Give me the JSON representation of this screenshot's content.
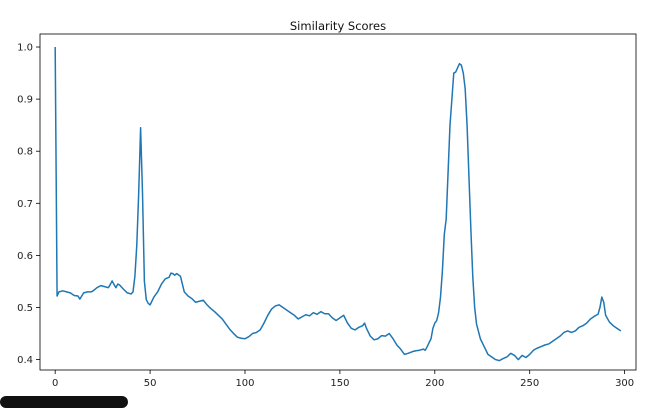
{
  "chart_data": {
    "type": "line",
    "title": "Similarity Scores",
    "xlabel": "",
    "ylabel": "",
    "xlim": [
      -8,
      306
    ],
    "ylim": [
      0.38,
      1.025
    ],
    "x_ticks": [
      0,
      50,
      100,
      150,
      200,
      250,
      300
    ],
    "y_ticks": [
      0.4,
      0.5,
      0.6,
      0.7,
      0.8,
      0.9,
      1.0
    ],
    "grid": false,
    "legend": "none",
    "colors": {
      "line": "#1f77b4"
    },
    "series": [
      {
        "points": [
          [
            0,
            1.0
          ],
          [
            1,
            0.522
          ],
          [
            2,
            0.53
          ],
          [
            4,
            0.532
          ],
          [
            6,
            0.53
          ],
          [
            8,
            0.528
          ],
          [
            10,
            0.523
          ],
          [
            12,
            0.522
          ],
          [
            13,
            0.516
          ],
          [
            15,
            0.528
          ],
          [
            17,
            0.53
          ],
          [
            19,
            0.53
          ],
          [
            20,
            0.532
          ],
          [
            22,
            0.538
          ],
          [
            24,
            0.542
          ],
          [
            26,
            0.54
          ],
          [
            28,
            0.538
          ],
          [
            29,
            0.544
          ],
          [
            30,
            0.551
          ],
          [
            31,
            0.544
          ],
          [
            32,
            0.538
          ],
          [
            33,
            0.545
          ],
          [
            34,
            0.543
          ],
          [
            36,
            0.535
          ],
          [
            38,
            0.528
          ],
          [
            40,
            0.526
          ],
          [
            41,
            0.53
          ],
          [
            42,
            0.56
          ],
          [
            43,
            0.62
          ],
          [
            44,
            0.72
          ],
          [
            45,
            0.845
          ],
          [
            46,
            0.72
          ],
          [
            47,
            0.55
          ],
          [
            48,
            0.515
          ],
          [
            49,
            0.508
          ],
          [
            50,
            0.505
          ],
          [
            52,
            0.52
          ],
          [
            54,
            0.53
          ],
          [
            56,
            0.545
          ],
          [
            58,
            0.555
          ],
          [
            60,
            0.558
          ],
          [
            61,
            0.566
          ],
          [
            62,
            0.565
          ],
          [
            63,
            0.562
          ],
          [
            64,
            0.565
          ],
          [
            66,
            0.56
          ],
          [
            67,
            0.545
          ],
          [
            68,
            0.53
          ],
          [
            70,
            0.522
          ],
          [
            72,
            0.517
          ],
          [
            74,
            0.51
          ],
          [
            76,
            0.512
          ],
          [
            78,
            0.514
          ],
          [
            80,
            0.505
          ],
          [
            82,
            0.498
          ],
          [
            84,
            0.492
          ],
          [
            86,
            0.485
          ],
          [
            88,
            0.478
          ],
          [
            90,
            0.468
          ],
          [
            92,
            0.458
          ],
          [
            94,
            0.45
          ],
          [
            96,
            0.443
          ],
          [
            98,
            0.441
          ],
          [
            100,
            0.44
          ],
          [
            102,
            0.444
          ],
          [
            104,
            0.45
          ],
          [
            106,
            0.452
          ],
          [
            108,
            0.457
          ],
          [
            110,
            0.47
          ],
          [
            112,
            0.485
          ],
          [
            114,
            0.497
          ],
          [
            116,
            0.503
          ],
          [
            118,
            0.505
          ],
          [
            120,
            0.5
          ],
          [
            122,
            0.495
          ],
          [
            124,
            0.49
          ],
          [
            126,
            0.485
          ],
          [
            128,
            0.478
          ],
          [
            130,
            0.482
          ],
          [
            132,
            0.486
          ],
          [
            134,
            0.484
          ],
          [
            136,
            0.49
          ],
          [
            138,
            0.487
          ],
          [
            140,
            0.492
          ],
          [
            142,
            0.488
          ],
          [
            144,
            0.488
          ],
          [
            146,
            0.48
          ],
          [
            148,
            0.475
          ],
          [
            150,
            0.48
          ],
          [
            152,
            0.485
          ],
          [
            154,
            0.47
          ],
          [
            156,
            0.46
          ],
          [
            158,
            0.457
          ],
          [
            160,
            0.462
          ],
          [
            162,
            0.465
          ],
          [
            163,
            0.47
          ],
          [
            164,
            0.46
          ],
          [
            166,
            0.445
          ],
          [
            168,
            0.438
          ],
          [
            170,
            0.44
          ],
          [
            172,
            0.446
          ],
          [
            174,
            0.445
          ],
          [
            176,
            0.45
          ],
          [
            178,
            0.44
          ],
          [
            180,
            0.428
          ],
          [
            182,
            0.42
          ],
          [
            184,
            0.41
          ],
          [
            186,
            0.412
          ],
          [
            188,
            0.415
          ],
          [
            190,
            0.417
          ],
          [
            192,
            0.418
          ],
          [
            194,
            0.42
          ],
          [
            195,
            0.418
          ],
          [
            196,
            0.425
          ],
          [
            198,
            0.44
          ],
          [
            199,
            0.46
          ],
          [
            200,
            0.47
          ],
          [
            201,
            0.475
          ],
          [
            202,
            0.49
          ],
          [
            203,
            0.52
          ],
          [
            204,
            0.57
          ],
          [
            205,
            0.64
          ],
          [
            206,
            0.67
          ],
          [
            207,
            0.76
          ],
          [
            208,
            0.85
          ],
          [
            209,
            0.9
          ],
          [
            210,
            0.95
          ],
          [
            211,
            0.952
          ],
          [
            212,
            0.96
          ],
          [
            213,
            0.968
          ],
          [
            214,
            0.965
          ],
          [
            215,
            0.95
          ],
          [
            216,
            0.92
          ],
          [
            217,
            0.85
          ],
          [
            218,
            0.75
          ],
          [
            219,
            0.65
          ],
          [
            220,
            0.56
          ],
          [
            221,
            0.5
          ],
          [
            222,
            0.468
          ],
          [
            224,
            0.44
          ],
          [
            226,
            0.425
          ],
          [
            228,
            0.41
          ],
          [
            230,
            0.405
          ],
          [
            232,
            0.4
          ],
          [
            234,
            0.398
          ],
          [
            236,
            0.402
          ],
          [
            238,
            0.405
          ],
          [
            240,
            0.412
          ],
          [
            242,
            0.408
          ],
          [
            244,
            0.4
          ],
          [
            246,
            0.408
          ],
          [
            248,
            0.404
          ],
          [
            250,
            0.41
          ],
          [
            252,
            0.418
          ],
          [
            254,
            0.422
          ],
          [
            256,
            0.425
          ],
          [
            258,
            0.428
          ],
          [
            260,
            0.43
          ],
          [
            262,
            0.435
          ],
          [
            264,
            0.44
          ],
          [
            266,
            0.445
          ],
          [
            268,
            0.452
          ],
          [
            270,
            0.455
          ],
          [
            272,
            0.452
          ],
          [
            274,
            0.455
          ],
          [
            276,
            0.462
          ],
          [
            278,
            0.465
          ],
          [
            280,
            0.47
          ],
          [
            282,
            0.478
          ],
          [
            284,
            0.483
          ],
          [
            286,
            0.487
          ],
          [
            287,
            0.5
          ],
          [
            288,
            0.52
          ],
          [
            289,
            0.51
          ],
          [
            290,
            0.485
          ],
          [
            292,
            0.472
          ],
          [
            294,
            0.465
          ],
          [
            296,
            0.46
          ],
          [
            298,
            0.455
          ]
        ]
      }
    ]
  }
}
